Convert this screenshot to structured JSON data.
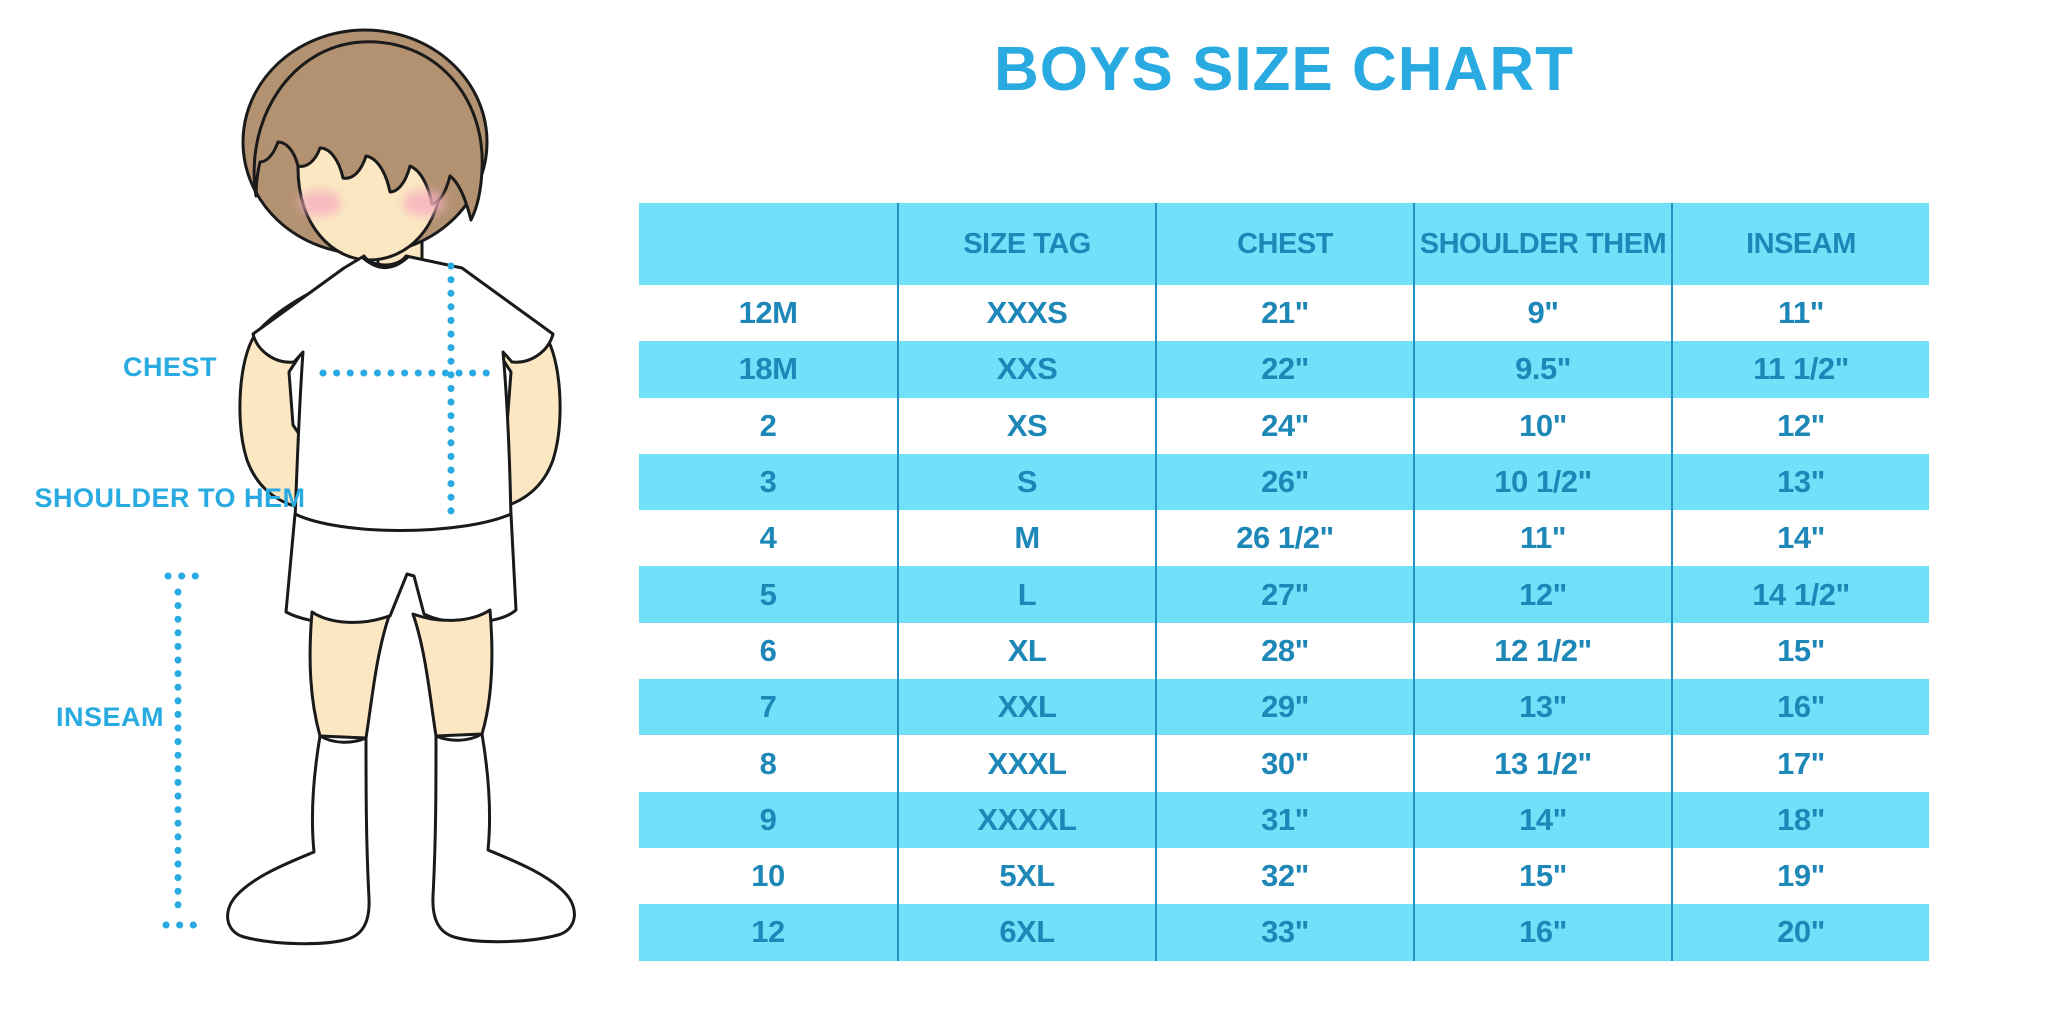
{
  "title": "BOYS SIZE CHART",
  "figure": {
    "chest_label": "CHEST",
    "shoulder_label": "SHOULDER TO HEM",
    "inseam_label": "INSEAM"
  },
  "chart_data": {
    "type": "table",
    "title": "BOYS SIZE CHART",
    "columns": [
      "",
      "SIZE TAG",
      "CHEST",
      "SHOULDER THEM",
      "INSEAM"
    ],
    "rows": [
      [
        "12M",
        "XXXS",
        "21\"",
        "9\"",
        "11\""
      ],
      [
        "18M",
        "XXS",
        "22\"",
        "9.5\"",
        "11 1/2\""
      ],
      [
        "2",
        "XS",
        "24\"",
        "10\"",
        "12\""
      ],
      [
        "3",
        "S",
        "26\"",
        "10 1/2\"",
        "13\""
      ],
      [
        "4",
        "M",
        "26 1/2\"",
        "11\"",
        "14\""
      ],
      [
        "5",
        "L",
        "27\"",
        "12\"",
        "14 1/2\""
      ],
      [
        "6",
        "XL",
        "28\"",
        "12 1/2\"",
        "15\""
      ],
      [
        "7",
        "XXL",
        "29\"",
        "13\"",
        "16\""
      ],
      [
        "8",
        "XXXL",
        "30\"",
        "13 1/2\"",
        "17\""
      ],
      [
        "9",
        "XXXXL",
        "31\"",
        "14\"",
        "18\""
      ],
      [
        "10",
        "5XL",
        "32\"",
        "15\"",
        "19\""
      ],
      [
        "12",
        "6XL",
        "33\"",
        "16\"",
        "20\""
      ]
    ],
    "layout": {
      "stripe_pattern": "alternating white/cyan rows, cyan header",
      "legend": "none",
      "grid": "vertical dividers only"
    }
  },
  "colors": {
    "accent": "#29ABE2",
    "cell-text": "#1D87B8",
    "band": "#71E1FA",
    "divider": "#2493C3",
    "skin": "#FBE7C2",
    "hair": "#B39271",
    "blush": "#F6AFC0",
    "outline": "#1A1A1A",
    "dot": "#29ABE2"
  }
}
